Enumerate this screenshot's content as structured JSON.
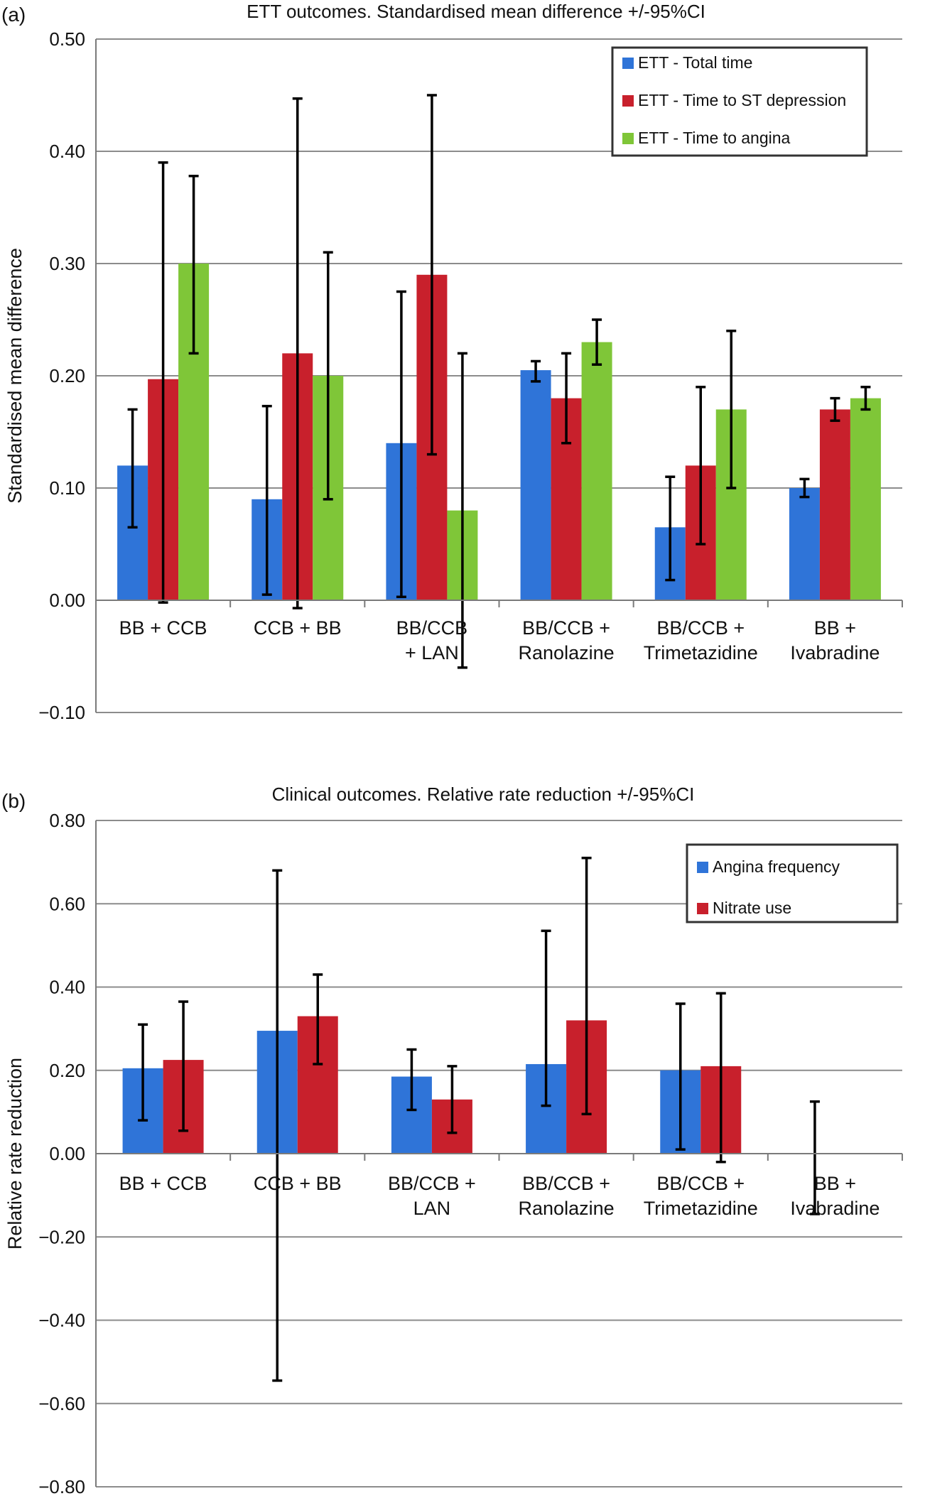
{
  "chart_data": [
    {
      "panel": "(a)",
      "type": "bar",
      "title": "ETT outcomes. Standardised mean difference +/-95%CI",
      "ylabel": "Standardised mean difference",
      "xlabel": "",
      "ylim": [
        -0.1,
        0.5
      ],
      "yticks": [
        -0.1,
        0.0,
        0.1,
        0.2,
        0.3,
        0.4,
        0.5
      ],
      "ytick_labels": [
        "−0.10",
        "0.00",
        "0.10",
        "0.20",
        "0.30",
        "0.40",
        "0.50"
      ],
      "grid": true,
      "legend_position": "top-right",
      "categories": [
        [
          "BB + CCB"
        ],
        [
          "CCB + BB"
        ],
        [
          "BB/CCB",
          "+ LAN"
        ],
        [
          "BB/CCB +",
          "Ranolazine"
        ],
        [
          "BB/CCB +",
          "Trimetazidine"
        ],
        [
          "BB +",
          "Ivabradine"
        ]
      ],
      "series": [
        {
          "name": "ETT - Total time",
          "color": "#2f74d8",
          "values": [
            0.12,
            0.09,
            0.14,
            0.205,
            0.065,
            0.1
          ],
          "err_low": [
            0.065,
            0.005,
            0.003,
            0.195,
            0.018,
            0.092
          ],
          "err_high": [
            0.17,
            0.173,
            0.275,
            0.213,
            0.11,
            0.108
          ]
        },
        {
          "name": "ETT - Time to ST depression",
          "color": "#c8202c",
          "values": [
            0.197,
            0.22,
            0.29,
            0.18,
            0.12,
            0.17
          ],
          "err_low": [
            -0.002,
            -0.007,
            0.13,
            0.14,
            0.05,
            0.16
          ],
          "err_high": [
            0.39,
            0.447,
            0.45,
            0.22,
            0.19,
            0.18
          ]
        },
        {
          "name": "ETT - Time to angina",
          "color": "#7fc638",
          "values": [
            0.3,
            0.2,
            0.08,
            0.23,
            0.17,
            0.18
          ],
          "err_low": [
            0.22,
            0.09,
            -0.06,
            0.21,
            0.1,
            0.17
          ],
          "err_high": [
            0.378,
            0.31,
            0.22,
            0.25,
            0.24,
            0.19
          ]
        }
      ]
    },
    {
      "panel": "(b)",
      "type": "bar",
      "title": "Clinical outcomes. Relative rate reduction +/-95%CI",
      "ylabel": "Relative rate reduction",
      "xlabel": "",
      "ylim": [
        -0.8,
        0.8
      ],
      "yticks": [
        -0.8,
        -0.6,
        -0.4,
        -0.2,
        0.0,
        0.2,
        0.4,
        0.6,
        0.8
      ],
      "ytick_labels": [
        "−0.80",
        "−0.60",
        "−0.40",
        "−0.20",
        "0.00",
        "0.20",
        "0.40",
        "0.60",
        "0.80"
      ],
      "grid": true,
      "legend_position": "top-right",
      "categories": [
        [
          "BB + CCB"
        ],
        [
          "CCB + BB"
        ],
        [
          "BB/CCB +",
          "LAN"
        ],
        [
          "BB/CCB +",
          "Ranolazine"
        ],
        [
          "BB/CCB +",
          "Trimetazidine"
        ],
        [
          "BB +",
          "Ivabradine"
        ]
      ],
      "series": [
        {
          "name": "Angina frequency",
          "color": "#2f74d8",
          "values": [
            0.205,
            0.295,
            0.185,
            0.215,
            0.2,
            0.0
          ],
          "err_low": [
            0.08,
            -0.545,
            0.105,
            0.115,
            0.01,
            -0.145
          ],
          "err_high": [
            0.31,
            0.68,
            0.25,
            0.535,
            0.36,
            0.125
          ]
        },
        {
          "name": "Nitrate use",
          "color": "#c8202c",
          "values": [
            0.225,
            0.33,
            0.13,
            0.32,
            0.21,
            null
          ],
          "err_low": [
            0.055,
            0.215,
            0.05,
            0.095,
            -0.02,
            null
          ],
          "err_high": [
            0.365,
            0.43,
            0.21,
            0.71,
            0.385,
            null
          ]
        }
      ]
    }
  ]
}
